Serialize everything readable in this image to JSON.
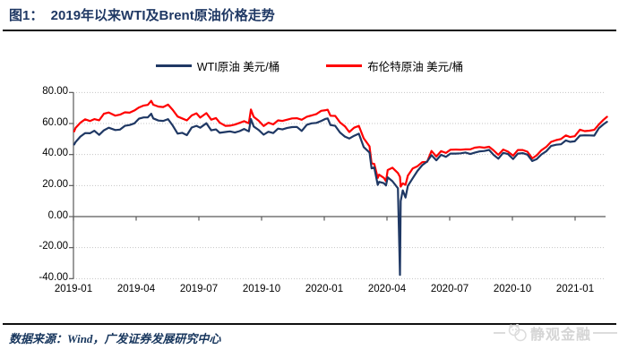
{
  "header": {
    "title": "图1：  2019年以来WTI及Brent原油价格走势",
    "title_color": "#1F3864"
  },
  "chart_data": {
    "type": "line",
    "title": "2019年以来WTI及Brent原油价格走势",
    "legend_position": "top-center",
    "grid": "horizontal dotted",
    "ylim": [
      -40,
      80
    ],
    "yticks": [
      80,
      60,
      40,
      20,
      0,
      -20,
      -40
    ],
    "ytick_labels": [
      "80.00",
      "60.00",
      "40.00",
      "20.00",
      "0.00",
      "-20.00",
      "-40.00"
    ],
    "xtick_labels": [
      "2019-01",
      "2019-04",
      "2019-07",
      "2019-10",
      "2020-01",
      "2020-04",
      "2020-07",
      "2020-10",
      "2021-01"
    ],
    "dates": [
      "2019-01-02",
      "2019-01-04",
      "2019-01-11",
      "2019-01-18",
      "2019-01-25",
      "2019-02-01",
      "2019-02-08",
      "2019-02-15",
      "2019-02-22",
      "2019-03-01",
      "2019-03-08",
      "2019-03-15",
      "2019-03-22",
      "2019-03-29",
      "2019-04-05",
      "2019-04-12",
      "2019-04-18",
      "2019-04-23",
      "2019-04-26",
      "2019-05-03",
      "2019-05-10",
      "2019-05-17",
      "2019-05-24",
      "2019-05-31",
      "2019-06-07",
      "2019-06-14",
      "2019-06-21",
      "2019-06-28",
      "2019-07-03",
      "2019-07-12",
      "2019-07-19",
      "2019-07-26",
      "2019-08-01",
      "2019-08-09",
      "2019-08-16",
      "2019-08-23",
      "2019-08-30",
      "2019-09-06",
      "2019-09-13",
      "2019-09-16",
      "2019-09-20",
      "2019-09-27",
      "2019-10-04",
      "2019-10-11",
      "2019-10-18",
      "2019-10-25",
      "2019-11-01",
      "2019-11-08",
      "2019-11-15",
      "2019-11-22",
      "2019-11-29",
      "2019-12-06",
      "2019-12-13",
      "2019-12-20",
      "2019-12-27",
      "2020-01-03",
      "2020-01-06",
      "2020-01-10",
      "2020-01-17",
      "2020-01-24",
      "2020-01-31",
      "2020-02-07",
      "2020-02-14",
      "2020-02-21",
      "2020-02-28",
      "2020-03-06",
      "2020-03-09",
      "2020-03-13",
      "2020-03-18",
      "2020-03-20",
      "2020-03-27",
      "2020-03-30",
      "2020-04-02",
      "2020-04-09",
      "2020-04-17",
      "2020-04-20",
      "2020-04-21",
      "2020-04-24",
      "2020-04-28",
      "2020-05-01",
      "2020-05-08",
      "2020-05-15",
      "2020-05-22",
      "2020-05-29",
      "2020-06-05",
      "2020-06-12",
      "2020-06-19",
      "2020-06-26",
      "2020-07-02",
      "2020-07-10",
      "2020-07-17",
      "2020-07-24",
      "2020-07-31",
      "2020-08-07",
      "2020-08-14",
      "2020-08-21",
      "2020-08-28",
      "2020-09-04",
      "2020-09-11",
      "2020-09-18",
      "2020-09-25",
      "2020-10-02",
      "2020-10-09",
      "2020-10-16",
      "2020-10-23",
      "2020-10-30",
      "2020-11-06",
      "2020-11-13",
      "2020-11-20",
      "2020-11-27",
      "2020-12-04",
      "2020-12-11",
      "2020-12-18",
      "2020-12-24",
      "2020-12-31",
      "2021-01-08",
      "2021-01-15",
      "2021-01-22",
      "2021-01-29",
      "2021-02-05",
      "2021-02-12",
      "2021-02-17"
    ],
    "series": [
      {
        "name": "WTI原油 美元/桶",
        "color": "#1F3864",
        "values": [
          46.5,
          48.0,
          51.6,
          53.8,
          53.7,
          55.3,
          52.7,
          55.6,
          57.3,
          55.8,
          56.1,
          58.5,
          59.0,
          60.1,
          63.1,
          63.9,
          64.0,
          66.3,
          63.3,
          61.9,
          61.7,
          62.8,
          58.6,
          53.5,
          54.0,
          52.5,
          57.4,
          58.5,
          57.3,
          60.2,
          55.6,
          56.2,
          54.0,
          54.5,
          54.9,
          54.2,
          55.1,
          56.5,
          54.9,
          62.9,
          58.1,
          55.9,
          52.8,
          54.7,
          53.8,
          56.7,
          56.2,
          57.2,
          57.7,
          57.8,
          55.2,
          59.2,
          60.1,
          60.4,
          61.7,
          63.0,
          63.3,
          59.0,
          58.5,
          54.2,
          51.6,
          50.3,
          52.1,
          53.4,
          44.8,
          41.3,
          31.1,
          31.7,
          20.4,
          22.4,
          21.5,
          20.1,
          25.3,
          22.8,
          18.3,
          -37.6,
          10.0,
          16.9,
          12.3,
          19.8,
          24.7,
          29.4,
          33.2,
          35.5,
          39.6,
          36.3,
          39.8,
          38.5,
          40.6,
          40.6,
          40.8,
          41.3,
          40.3,
          41.2,
          42.0,
          42.3,
          43.0,
          39.8,
          37.3,
          41.1,
          40.3,
          37.1,
          40.6,
          40.9,
          39.9,
          35.8,
          37.1,
          40.1,
          42.2,
          45.5,
          46.3,
          46.6,
          49.1,
          48.2,
          48.5,
          52.2,
          52.4,
          52.3,
          52.2,
          56.9,
          59.5,
          61.1
        ]
      },
      {
        "name": "布伦特原油 美元/桶",
        "color": "#FF0000",
        "values": [
          54.9,
          57.1,
          60.5,
          62.7,
          61.6,
          62.8,
          62.1,
          66.3,
          67.1,
          65.1,
          65.7,
          67.2,
          67.0,
          68.4,
          70.3,
          71.6,
          72.0,
          74.6,
          72.1,
          70.9,
          70.6,
          72.2,
          68.7,
          64.5,
          63.3,
          62.0,
          65.2,
          66.6,
          63.8,
          66.7,
          62.5,
          63.5,
          60.5,
          58.5,
          58.6,
          59.3,
          60.4,
          61.5,
          60.2,
          69.0,
          64.3,
          61.9,
          58.4,
          60.5,
          59.4,
          62.0,
          61.7,
          62.5,
          63.3,
          63.4,
          62.4,
          64.4,
          65.2,
          66.1,
          68.2,
          68.6,
          68.9,
          65.0,
          64.9,
          60.7,
          58.2,
          54.5,
          57.3,
          58.5,
          50.5,
          45.3,
          34.4,
          33.9,
          24.9,
          27.0,
          24.9,
          22.8,
          30.0,
          31.5,
          28.1,
          25.6,
          19.3,
          21.4,
          20.5,
          26.4,
          31.0,
          32.5,
          35.1,
          35.3,
          42.3,
          38.7,
          42.2,
          41.0,
          43.1,
          43.2,
          43.1,
          43.3,
          43.3,
          44.4,
          44.8,
          44.4,
          45.0,
          42.7,
          39.8,
          43.2,
          41.9,
          39.3,
          42.9,
          42.9,
          41.8,
          37.5,
          39.5,
          42.8,
          45.0,
          48.2,
          49.3,
          50.0,
          52.3,
          51.3,
          51.8,
          56.0,
          55.1,
          55.4,
          55.9,
          59.3,
          62.4,
          64.3
        ]
      }
    ]
  },
  "footer": {
    "source": "数据来源：Wind，广发证券发展研究中心",
    "color": "#17365D"
  },
  "watermark": {
    "text": "静观金融",
    "icon": "panda-icon",
    "color": "#D5D5D5"
  }
}
